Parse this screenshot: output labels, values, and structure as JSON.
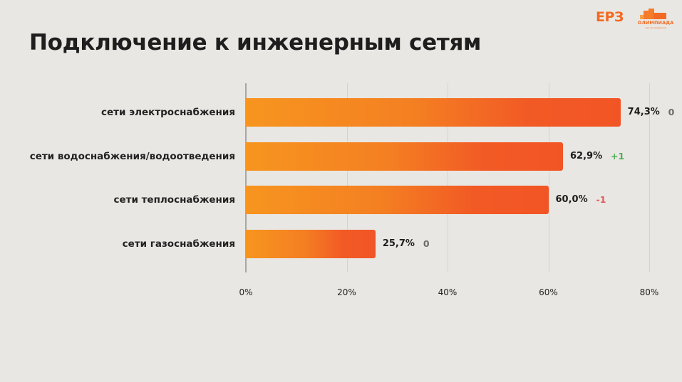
{
  "header": {
    "title": "Подключение к инженерным сетям",
    "logo_erz": "ЕРЗ",
    "logo_olymp": "ОЛИМПИАДА",
    "logo_olymp_sub": "для застройщиков"
  },
  "chart_data": {
    "type": "bar",
    "orientation": "horizontal",
    "title": "Подключение к инженерным сетям",
    "xlabel": "",
    "ylabel": "",
    "xlim": [
      0,
      80
    ],
    "grid": true,
    "x_ticks": [
      "0%",
      "20%",
      "40%",
      "60%",
      "80%"
    ],
    "categories": [
      "сети электроснабжения",
      "сети водоснабжения/водоотведения",
      "сети теплоснабжения",
      "сети газоснабжения"
    ],
    "values": [
      74.3,
      62.9,
      60.0,
      25.7
    ],
    "value_labels": [
      "74,3%",
      "62,9%",
      "60,0%",
      "25,7%"
    ],
    "deltas": [
      "0",
      "+1",
      "-1",
      "0"
    ],
    "delta_colors": [
      "#6b6b6b",
      "#4caf50",
      "#e05a5a",
      "#6b6b6b"
    ],
    "bar_gradient": [
      "#f7951f",
      "#f25525"
    ]
  }
}
